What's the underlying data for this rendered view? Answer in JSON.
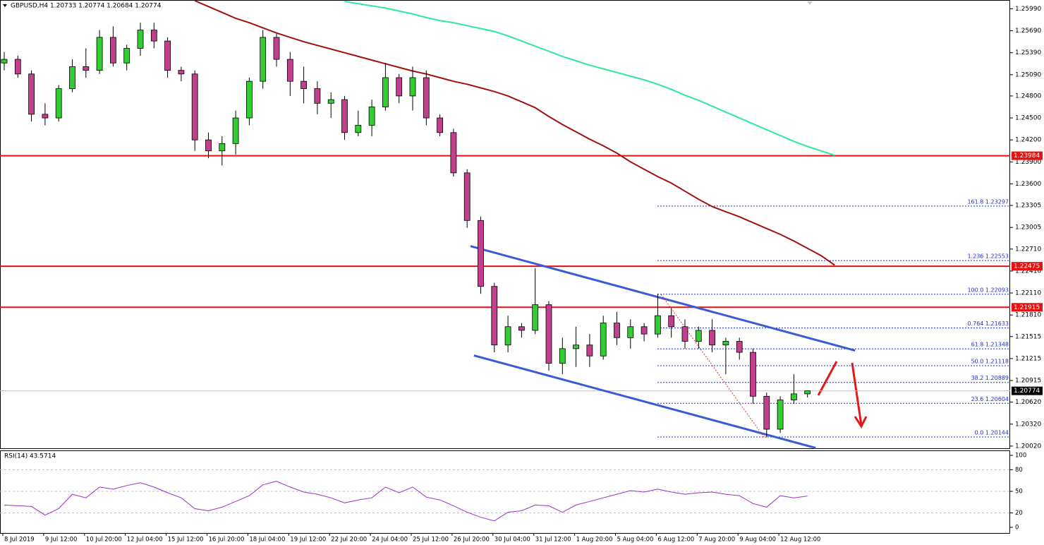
{
  "chart_data": {
    "type": "candlestick",
    "title": "GBPUSD,H4 1.20733 1.20774 1.20684 1.20774",
    "categories": [
      "8 Jul 2019",
      null,
      null,
      "9 Jul 12:00",
      null,
      null,
      "10 Jul 20:00",
      null,
      null,
      "12 Jul 04:00",
      null,
      null,
      "15 Jul 12:00",
      null,
      null,
      "16 Jul 20:00",
      null,
      null,
      "18 Jul 04:00",
      null,
      null,
      "19 Jul 12:00",
      null,
      null,
      "22 Jul 20:00",
      null,
      null,
      "24 Jul 04:00",
      null,
      null,
      "25 Jul 12:00",
      null,
      null,
      "26 Jul 20:00",
      null,
      null,
      "30 Jul 04:00",
      null,
      null,
      "31 Jul 12:00",
      null,
      null,
      "1 Aug 20:00",
      null,
      null,
      "5 Aug 04:00",
      null,
      null,
      "6 Aug 12:00",
      null,
      null,
      "7 Aug 20:00",
      null,
      null,
      "9 Aug 04:00",
      null,
      null,
      "12 Aug 12:00",
      null,
      null,
      null,
      null
    ],
    "ohlc": [
      [
        1.2525,
        1.254,
        1.2515,
        1.253
      ],
      [
        1.253,
        1.2535,
        1.2505,
        1.251
      ],
      [
        1.251,
        1.2515,
        1.2445,
        1.2455
      ],
      [
        1.2455,
        1.247,
        1.244,
        1.245
      ],
      [
        1.245,
        1.2495,
        1.2445,
        1.249
      ],
      [
        1.249,
        1.253,
        1.2485,
        1.252
      ],
      [
        1.252,
        1.2545,
        1.2505,
        1.2515
      ],
      [
        1.2515,
        1.257,
        1.251,
        1.256
      ],
      [
        1.256,
        1.2575,
        1.252,
        1.2525
      ],
      [
        1.2525,
        1.255,
        1.2515,
        1.2545
      ],
      [
        1.2545,
        1.258,
        1.2535,
        1.257
      ],
      [
        1.257,
        1.258,
        1.2545,
        1.2555
      ],
      [
        1.2555,
        1.256,
        1.2505,
        1.2515
      ],
      [
        1.2515,
        1.252,
        1.25,
        1.251
      ],
      [
        1.251,
        1.2515,
        1.2405,
        1.242
      ],
      [
        1.242,
        1.243,
        1.2395,
        1.2405
      ],
      [
        1.2405,
        1.2425,
        1.2385,
        1.2415
      ],
      [
        1.2415,
        1.246,
        1.24,
        1.245
      ],
      [
        1.245,
        1.2505,
        1.244,
        1.25
      ],
      [
        1.25,
        1.257,
        1.249,
        1.256
      ],
      [
        1.256,
        1.2565,
        1.252,
        1.253
      ],
      [
        1.253,
        1.254,
        1.248,
        1.25
      ],
      [
        1.25,
        1.252,
        1.247,
        1.249
      ],
      [
        1.249,
        1.25,
        1.2455,
        1.247
      ],
      [
        1.247,
        1.2485,
        1.245,
        1.2475
      ],
      [
        1.2475,
        1.248,
        1.242,
        1.243
      ],
      [
        1.243,
        1.246,
        1.2425,
        1.244
      ],
      [
        1.244,
        1.2475,
        1.2425,
        1.2465
      ],
      [
        1.2465,
        1.2525,
        1.246,
        1.2505
      ],
      [
        1.2505,
        1.251,
        1.247,
        1.248
      ],
      [
        1.248,
        1.252,
        1.246,
        1.2505
      ],
      [
        1.2505,
        1.2515,
        1.244,
        1.245
      ],
      [
        1.245,
        1.2455,
        1.2425,
        1.243
      ],
      [
        1.243,
        1.2435,
        1.237,
        1.2375
      ],
      [
        1.2375,
        1.238,
        1.23,
        1.231
      ],
      [
        1.231,
        1.2315,
        1.221,
        1.222
      ],
      [
        1.222,
        1.2225,
        1.213,
        1.214
      ],
      [
        1.214,
        1.218,
        1.213,
        1.2165
      ],
      [
        1.2165,
        1.217,
        1.215,
        1.216
      ],
      [
        1.216,
        1.2245,
        1.2155,
        1.2195
      ],
      [
        1.2195,
        1.22,
        1.2105,
        1.2115
      ],
      [
        1.2115,
        1.215,
        1.21,
        1.2135
      ],
      [
        1.2135,
        1.2165,
        1.211,
        1.214
      ],
      [
        1.214,
        1.2155,
        1.211,
        1.2125
      ],
      [
        1.2125,
        1.218,
        1.212,
        1.217
      ],
      [
        1.217,
        1.2185,
        1.214,
        1.215
      ],
      [
        1.215,
        1.2175,
        1.2135,
        1.2165
      ],
      [
        1.2165,
        1.217,
        1.2145,
        1.2155
      ],
      [
        1.2155,
        1.221,
        1.215,
        1.218
      ],
      [
        1.218,
        1.219,
        1.215,
        1.2165
      ],
      [
        1.2165,
        1.2175,
        1.2135,
        1.2145
      ],
      [
        1.2145,
        1.2165,
        1.2135,
        1.216
      ],
      [
        1.216,
        1.2175,
        1.213,
        1.214
      ],
      [
        1.214,
        1.215,
        1.21,
        1.2145
      ],
      [
        1.2145,
        1.215,
        1.212,
        1.213
      ],
      [
        1.213,
        1.2135,
        1.206,
        1.207
      ],
      [
        1.207,
        1.2075,
        1.2014,
        1.2025
      ],
      [
        1.2025,
        1.207,
        1.202,
        1.2065
      ],
      [
        1.2065,
        1.21,
        1.206,
        1.20733
      ],
      [
        1.20733,
        1.20774,
        1.20684,
        1.20774
      ],
      null,
      null
    ],
    "bull_color": "#32cd32",
    "bear_color": "#c0408c",
    "grid": false,
    "ylim": [
      1.1999,
      1.2611
    ],
    "yticks": [
      {
        "value": 1.2599,
        "label": "1.25990"
      },
      {
        "value": 1.2569,
        "label": "1.25690"
      },
      {
        "value": 1.2539,
        "label": "1.25390"
      },
      {
        "value": 1.2509,
        "label": "1.25090"
      },
      {
        "value": 1.248,
        "label": "1.24800"
      },
      {
        "value": 1.245,
        "label": "1.24500"
      },
      {
        "value": 1.242,
        "label": "1.24200"
      },
      {
        "value": 1.239,
        "label": "1.23900"
      },
      {
        "value": 1.236,
        "label": "1.23600"
      },
      {
        "value": 1.23305,
        "label": "1.23305"
      },
      {
        "value": 1.23005,
        "label": "1.23005"
      },
      {
        "value": 1.2271,
        "label": "1.22710"
      },
      {
        "value": 1.2241,
        "label": "1.22410"
      },
      {
        "value": 1.2211,
        "label": "1.22110"
      },
      {
        "value": 1.2181,
        "label": "1.21810"
      },
      {
        "value": 1.21515,
        "label": "1.21515"
      },
      {
        "value": 1.21215,
        "label": "1.21215"
      },
      {
        "value": 1.20915,
        "label": "1.20915"
      },
      {
        "value": 1.2062,
        "label": "1.20620"
      },
      {
        "value": 1.2032,
        "label": "1.20320"
      },
      {
        "value": 1.2002,
        "label": "1.20020"
      }
    ],
    "moving_averages": [
      {
        "color": "#a01010",
        "values": [
          null,
          null,
          null,
          null,
          null,
          null,
          null,
          null,
          null,
          null,
          null,
          null,
          null,
          null,
          1.261,
          1.2602,
          1.2594,
          1.2586,
          1.258,
          1.2573,
          1.2566,
          1.256,
          1.2554,
          1.2549,
          1.2544,
          1.2539,
          1.2534,
          1.2529,
          1.2524,
          1.2519,
          1.2514,
          1.251,
          1.2505,
          1.25,
          1.2496,
          1.2491,
          1.2486,
          1.248,
          1.2472,
          1.2464,
          1.2452,
          1.2441,
          1.2431,
          1.2421,
          1.2412,
          1.2402,
          1.239,
          1.238,
          1.237,
          1.2361,
          1.235,
          1.2339,
          1.2329,
          1.2322,
          1.2315,
          1.2307,
          1.2299,
          1.2291,
          1.2282,
          1.2272,
          1.2262,
          1.2249
        ]
      },
      {
        "color": "#2ee89a",
        "values": [
          null,
          null,
          null,
          null,
          null,
          null,
          null,
          null,
          null,
          null,
          null,
          null,
          null,
          null,
          null,
          null,
          null,
          null,
          null,
          null,
          null,
          null,
          null,
          null,
          null,
          1.2609,
          1.2606,
          1.2603,
          1.26,
          1.2596,
          1.2592,
          1.2587,
          1.2583,
          1.258,
          1.2576,
          1.2572,
          1.2568,
          1.2562,
          1.2555,
          1.2548,
          1.2541,
          1.2534,
          1.2528,
          1.2522,
          1.2517,
          1.2512,
          1.2507,
          1.2502,
          1.2496,
          1.2489,
          1.2481,
          1.2474,
          1.2466,
          1.2458,
          1.245,
          1.2442,
          1.2434,
          1.2426,
          1.2418,
          1.2411,
          1.2405,
          1.2399
        ]
      }
    ],
    "levels": [
      {
        "value": 1.23984,
        "color": "#e81010"
      },
      {
        "value": 1.22475,
        "color": "#e81010"
      },
      {
        "value": 1.21915,
        "color": "#e81010"
      }
    ],
    "current_price": {
      "value": 1.20774,
      "color": "#000000"
    },
    "fibonacci": {
      "color": "#2030d0",
      "levels": [
        {
          "value": 1.23297,
          "label": "161.8 1.23297"
        },
        {
          "value": 1.22553,
          "label": "1.236 1.22553"
        },
        {
          "value": 1.22093,
          "label": "100.0 1.22093"
        },
        {
          "value": 1.21633,
          "label": "0.764 1.21633"
        },
        {
          "value": 1.21348,
          "label": "61.8 1.21348"
        },
        {
          "value": 1.21118,
          "label": "50.0 1.21118"
        },
        {
          "value": 1.20889,
          "label": "38.2 1.20889"
        },
        {
          "value": 1.20604,
          "label": "23.6 1.20604"
        },
        {
          "value": 1.20144,
          "label": "0.0 1.20144"
        }
      ]
    },
    "trendlines": [
      {
        "color": "#3a5ad8",
        "points": [
          [
            34.25,
            1.22749
          ],
          [
            62.5,
            1.21324
          ]
        ]
      },
      {
        "color": "#3a5ad8",
        "points": [
          [
            34.5,
            1.21257
          ],
          [
            59.6,
            1.19995
          ]
        ]
      }
    ],
    "rsi": {
      "label": "RSI(14) 43.5714",
      "color": "#9b30c8",
      "ylim": [
        0,
        100
      ],
      "yticks": [
        100,
        80,
        50,
        20,
        0
      ],
      "values": [
        31,
        30,
        29,
        17,
        26,
        46,
        41,
        56,
        53,
        58,
        62,
        56,
        48,
        41,
        26,
        23,
        28,
        36,
        44,
        59,
        64,
        56,
        49,
        46,
        41,
        34,
        38,
        41,
        56,
        48,
        56,
        42,
        38,
        30,
        21,
        14,
        9,
        21,
        23,
        31,
        30,
        21,
        31,
        36,
        41,
        46,
        51,
        49,
        53,
        49,
        46,
        48,
        49,
        46,
        44,
        33,
        28,
        44,
        41,
        43.5714,
        null,
        null
      ]
    }
  }
}
